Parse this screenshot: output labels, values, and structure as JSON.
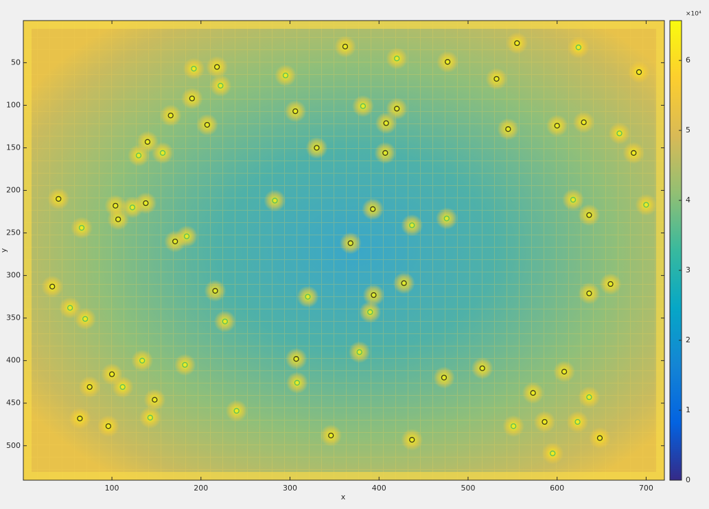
{
  "chart_data": {
    "type": "scatter",
    "x_label": "x",
    "y_label": "y",
    "xlim": [
      0.5,
      720.5
    ],
    "ylim": [
      0.5,
      540.5
    ],
    "y_reversed": true,
    "xticks": [
      100,
      200,
      300,
      400,
      500,
      600,
      700
    ],
    "yticks": [
      50,
      100,
      150,
      200,
      250,
      300,
      350,
      400,
      450,
      500
    ],
    "clim": [
      0,
      65700
    ],
    "cticks": [
      0,
      {
        "value": 10000,
        "label": "1"
      },
      {
        "value": 20000,
        "label": "2"
      },
      {
        "value": 30000,
        "label": "3"
      },
      {
        "value": 40000,
        "label": "4"
      },
      {
        "value": 50000,
        "label": "5"
      },
      {
        "value": 60000,
        "label": "6"
      }
    ],
    "colorbar_exponent_label": "×10⁴",
    "colormap": [
      "#352a87",
      "#0363e1",
      "#1485d4",
      "#06a7c6",
      "#38b99e",
      "#92bf73",
      "#d9ba56",
      "#fcce2e",
      "#f9fb0e"
    ],
    "series": [
      {
        "color": "#3d3a17",
        "x": [
          362,
          477,
          532,
          218,
          166,
          207,
          306,
          330,
          408,
          140,
          40,
          104,
          107,
          138,
          171,
          368,
          394,
          428,
          33,
          216,
          307,
          393,
          600,
          630,
          686,
          636,
          636,
          660,
          692,
          608,
          516,
          473,
          586,
          573,
          437,
          346,
          148,
          96,
          75,
          64,
          100,
          555,
          420,
          407,
          190,
          545,
          648
        ],
        "y": [
          31,
          49,
          69,
          55,
          112,
          123,
          107,
          150,
          121,
          143,
          210,
          218,
          234,
          215,
          260,
          262,
          323,
          309,
          313,
          318,
          398,
          222,
          124,
          120,
          156,
          229,
          321,
          310,
          61,
          413,
          409,
          420,
          472,
          438,
          493,
          488,
          446,
          477,
          431,
          468,
          416,
          27,
          104,
          156,
          92,
          128,
          491
        ]
      },
      {
        "color": "#5cc05a",
        "x": [
          420,
          295,
          192,
          222,
          382,
          437,
          476,
          283,
          320,
          390,
          378,
          308,
          134,
          182,
          112,
          143,
          240,
          227,
          184,
          66,
          70,
          53,
          130,
          157,
          670,
          618,
          700,
          636,
          623,
          551,
          595,
          624,
          123
        ],
        "y": [
          45,
          65,
          57,
          77,
          101,
          241,
          233,
          212,
          325,
          343,
          390,
          426,
          400,
          405,
          431,
          467,
          459,
          354,
          254,
          244,
          351,
          338,
          159,
          156,
          133,
          211,
          217,
          443,
          472,
          477,
          509,
          32,
          220
        ]
      }
    ]
  }
}
